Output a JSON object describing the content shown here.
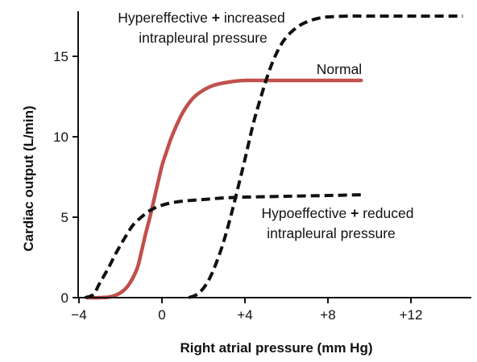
{
  "chart_data": {
    "type": "line",
    "title": "",
    "xlabel": "Right atrial pressure (mm Hg)",
    "ylabel": "Cardiac output (L/min)",
    "xlim": [
      -4,
      15
    ],
    "ylim": [
      0,
      18
    ],
    "x_ticks": [
      -4,
      0,
      4,
      8,
      12
    ],
    "x_tick_labels": [
      "−4",
      "0",
      "+4",
      "+8",
      "+12"
    ],
    "y_ticks": [
      0,
      5,
      10,
      15
    ],
    "y_tick_labels": [
      "0",
      "5",
      "10",
      "15"
    ],
    "grid": false,
    "legend": "none",
    "series": [
      {
        "name": "Normal",
        "style": "solid",
        "color": "#c0504d",
        "x": [
          -3.6,
          -3.0,
          -2.5,
          -2.0,
          -1.6,
          -1.2,
          -1.0,
          -0.8,
          -0.6,
          -0.4,
          -0.2,
          0.0,
          0.2,
          0.5,
          1.0,
          1.5,
          2.0,
          2.5,
          3.0,
          3.5,
          4.0,
          5.0,
          6.0,
          8.0,
          9.6
        ],
        "y": [
          0.0,
          0.0,
          0.05,
          0.3,
          0.8,
          1.8,
          2.8,
          3.9,
          4.9,
          6.0,
          7.1,
          8.2,
          9.0,
          10.1,
          11.5,
          12.4,
          12.9,
          13.2,
          13.35,
          13.45,
          13.5,
          13.5,
          13.5,
          13.5,
          13.5
        ]
      },
      {
        "name": "Hypereffective + increased intrapleural pressure",
        "style": "dashed",
        "color": "#111111",
        "x": [
          1.3,
          1.8,
          2.3,
          2.8,
          3.2,
          3.6,
          4.0,
          4.4,
          4.8,
          5.2,
          5.6,
          6.0,
          6.5,
          7.0,
          7.5,
          8.0,
          9.0,
          10.0,
          12.0,
          14.5
        ],
        "y": [
          0.0,
          0.3,
          1.2,
          2.8,
          4.5,
          6.5,
          8.6,
          10.8,
          12.6,
          14.2,
          15.4,
          16.2,
          16.8,
          17.15,
          17.35,
          17.45,
          17.5,
          17.5,
          17.5,
          17.5
        ]
      },
      {
        "name": "Hypoeffective + reduced intrapleural pressure",
        "style": "dashed",
        "color": "#111111",
        "x": [
          -3.7,
          -3.3,
          -3.0,
          -2.6,
          -2.2,
          -1.8,
          -1.4,
          -1.0,
          -0.6,
          -0.2,
          0.3,
          1.0,
          2.0,
          3.0,
          4.0,
          6.0,
          8.0,
          9.8
        ],
        "y": [
          0.0,
          0.2,
          0.9,
          1.8,
          2.8,
          3.7,
          4.5,
          5.0,
          5.4,
          5.65,
          5.85,
          6.0,
          6.1,
          6.2,
          6.25,
          6.3,
          6.35,
          6.4
        ]
      }
    ],
    "annotations": [
      {
        "lines": [
          "Hypereffective",
          "+",
          "increased"
        ],
        "line2": "intrapleural pressure",
        "series": 1
      },
      {
        "text": "Normal",
        "series": 0
      },
      {
        "lines": [
          "Hypoeffective",
          "+",
          "reduced"
        ],
        "line2": "intrapleural pressure",
        "series": 2
      }
    ]
  }
}
